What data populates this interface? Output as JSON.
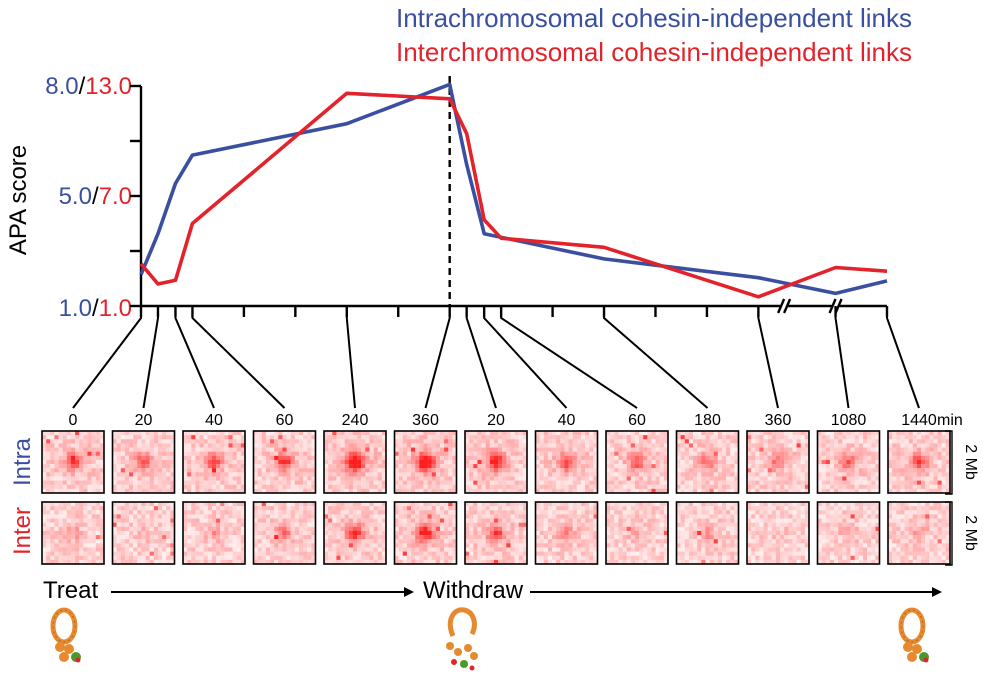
{
  "chart_data": {
    "type": "line",
    "ylabel": "APA score",
    "y_ticks": [
      {
        "blue": "1.0",
        "sep": "/",
        "red": "1.0"
      },
      {
        "blue": "5.0",
        "sep": "/",
        "red": "7.0"
      },
      {
        "blue": "8.0",
        "sep": "/",
        "red": "13.0"
      }
    ],
    "y_range_intra": [
      1.0,
      8.0
    ],
    "y_range_inter": [
      1.0,
      13.0
    ],
    "x_positions": [
      0,
      0.33,
      0.67,
      1,
      2,
      4,
      6,
      6.33,
      6.67,
      7,
      9,
      12,
      13.5,
      14.5
    ],
    "axis_break_positions": [
      12.5,
      13.5
    ],
    "divider_position": 6,
    "series": [
      {
        "name": "Intrachromosomal cohesin-independent links",
        "color": "#3a4fa0",
        "x": [
          0,
          0.33,
          0.67,
          1,
          4,
          6,
          6.33,
          6.67,
          9,
          12,
          13.5,
          14.5
        ],
        "values": [
          2.0,
          3.3,
          4.9,
          5.8,
          6.8,
          8.05,
          5.5,
          3.3,
          2.5,
          1.9,
          1.4,
          1.8
        ]
      },
      {
        "name": "Interchromosomal cohesin-independent links",
        "color": "#e3232b",
        "x": [
          0,
          0.33,
          0.67,
          1,
          4,
          6,
          6.33,
          6.67,
          7,
          9,
          12,
          13.5,
          14.5
        ],
        "values": [
          3.3,
          2.2,
          2.4,
          5.5,
          12.6,
          12.3,
          10.4,
          5.7,
          4.7,
          4.2,
          1.5,
          3.1,
          2.9
        ]
      }
    ]
  },
  "timepoints": [
    {
      "label": "0",
      "x": 0
    },
    {
      "label": "20",
      "x": 0.33
    },
    {
      "label": "40",
      "x": 0.67
    },
    {
      "label": "60",
      "x": 1
    },
    {
      "label": "240",
      "x": 4
    },
    {
      "label": "360",
      "x": 6
    },
    {
      "label": "20",
      "x": 6.33
    },
    {
      "label": "40",
      "x": 6.67
    },
    {
      "label": "60",
      "x": 7
    },
    {
      "label": "180",
      "x": 9
    },
    {
      "label": "360",
      "x": 12
    },
    {
      "label": "1080",
      "x": 13.5
    },
    {
      "label": "1440",
      "x": 14.5
    }
  ],
  "time_unit": "min",
  "rows": [
    {
      "label": "Intra",
      "color": "#3a4fa0",
      "intensity": [
        0.55,
        0.45,
        0.5,
        0.6,
        0.95,
        0.9,
        0.7,
        0.55,
        0.45,
        0.4,
        0.35,
        0.4,
        0.5
      ]
    },
    {
      "label": "Inter",
      "color": "#e3232b",
      "intensity": [
        0.2,
        0.12,
        0.2,
        0.35,
        0.6,
        0.7,
        0.55,
        0.3,
        0.18,
        0.25,
        0.1,
        0.15,
        0.2
      ]
    }
  ],
  "scale_label": "2 Mb",
  "bottom": {
    "treat_label": "Treat",
    "withdraw_label": "Withdraw"
  }
}
